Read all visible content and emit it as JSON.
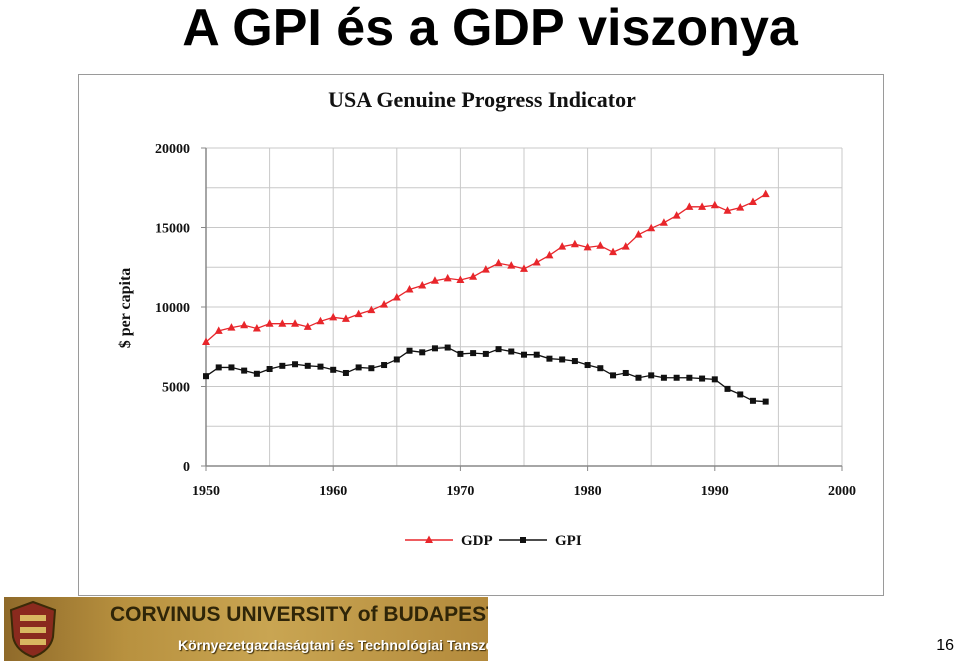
{
  "slide": {
    "title": "A GPI és a GDP viszonya",
    "page_number": "16"
  },
  "footer": {
    "university": "CORVINUS UNIVERSITY of BUDAPEST",
    "department": "Környezetgazdaságtani és Technológiai Tanszék"
  },
  "chart_data": {
    "type": "line",
    "title": "USA Genuine Progress Indicator",
    "xlabel": "",
    "ylabel": "$ per capita",
    "xlim": [
      1950,
      2000
    ],
    "ylim": [
      0,
      20000
    ],
    "x_ticks": [
      "1950",
      "1960",
      "1970",
      "1980",
      "1990",
      "2000"
    ],
    "y_ticks": [
      "0",
      "5000",
      "10000",
      "15000",
      "20000"
    ],
    "grid": true,
    "legend": "bottom",
    "x": [
      1950,
      1951,
      1952,
      1953,
      1954,
      1955,
      1956,
      1957,
      1958,
      1959,
      1960,
      1961,
      1962,
      1963,
      1964,
      1965,
      1966,
      1967,
      1968,
      1969,
      1970,
      1971,
      1972,
      1973,
      1974,
      1975,
      1976,
      1977,
      1978,
      1979,
      1980,
      1981,
      1982,
      1983,
      1984,
      1985,
      1986,
      1987,
      1988,
      1989,
      1990,
      1991,
      1992,
      1993,
      1994
    ],
    "series": [
      {
        "name": "GDP",
        "color": "#e8262b",
        "marker": "triangle",
        "values": [
          7800,
          8500,
          8700,
          8850,
          8650,
          8950,
          8950,
          8950,
          8750,
          9100,
          9350,
          9250,
          9550,
          9800,
          10150,
          10600,
          11100,
          11350,
          11650,
          11800,
          11700,
          11900,
          12350,
          12750,
          12600,
          12400,
          12800,
          13250,
          13800,
          13950,
          13750,
          13850,
          13450,
          13800,
          14550,
          14950,
          15300,
          15750,
          16300,
          16300,
          16400,
          16050,
          16250,
          16600,
          17100
        ]
      },
      {
        "name": "GPI",
        "color": "#111111",
        "marker": "square",
        "values": [
          5650,
          6200,
          6200,
          6000,
          5800,
          6100,
          6300,
          6400,
          6300,
          6250,
          6050,
          5850,
          6200,
          6150,
          6350,
          6700,
          7250,
          7150,
          7400,
          7450,
          7050,
          7100,
          7050,
          7350,
          7200,
          7000,
          7000,
          6750,
          6700,
          6600,
          6350,
          6150,
          5700,
          5850,
          5550,
          5700,
          5550,
          5550,
          5550,
          5500,
          5450,
          4850,
          4500,
          4100,
          4050
        ]
      }
    ]
  }
}
